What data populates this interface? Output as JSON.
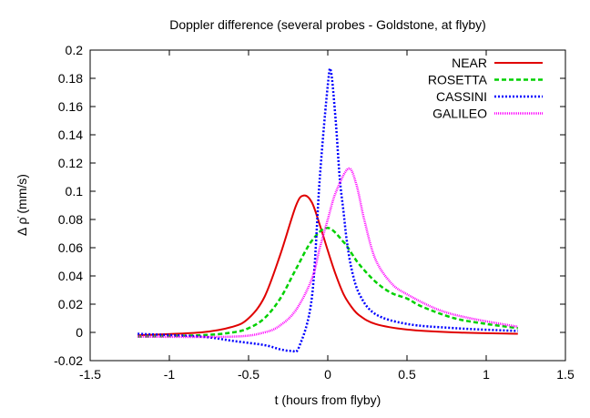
{
  "chart_data": {
    "type": "line",
    "title": "Doppler difference (several probes - Goldstone, at flyby)",
    "xlabel": "t (hours from flyby)",
    "ylabel": "Δ ρ̇ (mm/s)",
    "xlim": [
      -1.5,
      1.5
    ],
    "ylim": [
      -0.02,
      0.2
    ],
    "xticks": [
      "-1.5",
      "-1",
      "-0.5",
      "0",
      "0.5",
      "1",
      "1.5"
    ],
    "yticks": [
      "-0.02",
      "0",
      "0.02",
      "0.04",
      "0.06",
      "0.08",
      "0.1",
      "0.12",
      "0.14",
      "0.16",
      "0.18",
      "0.2"
    ],
    "grid": false,
    "legend": "top-right",
    "series": [
      {
        "name": "NEAR",
        "color": "#e00000",
        "style": "solid",
        "x": [
          -1.2,
          -0.8,
          -0.6,
          -0.5,
          -0.4,
          -0.3,
          -0.2,
          -0.15,
          -0.1,
          -0.05,
          0,
          0.05,
          0.1,
          0.15,
          0.2,
          0.3,
          0.5,
          0.8,
          1.2
        ],
        "y": [
          -0.002,
          0.0,
          0.004,
          0.01,
          0.025,
          0.055,
          0.09,
          0.097,
          0.092,
          0.076,
          0.058,
          0.041,
          0.027,
          0.018,
          0.012,
          0.006,
          0.002,
          0.0,
          -0.001
        ]
      },
      {
        "name": "ROSETTA",
        "color": "#00d000",
        "style": "dashed",
        "x": [
          -1.2,
          -0.8,
          -0.6,
          -0.5,
          -0.4,
          -0.3,
          -0.2,
          -0.1,
          0,
          0.1,
          0.15,
          0.2,
          0.3,
          0.4,
          0.5,
          0.6,
          0.8,
          1.0,
          1.2
        ],
        "y": [
          -0.003,
          -0.002,
          0.0,
          0.003,
          0.01,
          0.024,
          0.045,
          0.065,
          0.074,
          0.064,
          0.056,
          0.048,
          0.036,
          0.028,
          0.024,
          0.018,
          0.01,
          0.006,
          0.003
        ]
      },
      {
        "name": "CASSINI",
        "color": "#0000ff",
        "style": "dotted",
        "x": [
          -1.2,
          -0.8,
          -0.6,
          -0.4,
          -0.3,
          -0.23,
          -0.18,
          -0.1,
          -0.05,
          0,
          0.02,
          0.05,
          0.075,
          0.1,
          0.12,
          0.15,
          0.2,
          0.3,
          0.5,
          0.8,
          1.2
        ],
        "y": [
          -0.001,
          -0.003,
          -0.006,
          -0.009,
          -0.012,
          -0.013,
          -0.01,
          0.025,
          0.11,
          0.175,
          0.185,
          0.15,
          0.11,
          0.085,
          0.065,
          0.045,
          0.027,
          0.013,
          0.006,
          0.003,
          0.001
        ]
      },
      {
        "name": "GALILEO",
        "color": "#ff00ff",
        "style": "fine-dotted",
        "x": [
          -1.2,
          -0.6,
          -0.4,
          -0.3,
          -0.2,
          -0.1,
          -0.05,
          0,
          0.05,
          0.13,
          0.18,
          0.23,
          0.3,
          0.4,
          0.5,
          0.7,
          0.9,
          1.2
        ],
        "y": [
          -0.003,
          -0.003,
          0.0,
          0.005,
          0.016,
          0.038,
          0.06,
          0.08,
          0.099,
          0.116,
          0.105,
          0.08,
          0.052,
          0.035,
          0.027,
          0.016,
          0.01,
          0.004
        ]
      }
    ]
  }
}
